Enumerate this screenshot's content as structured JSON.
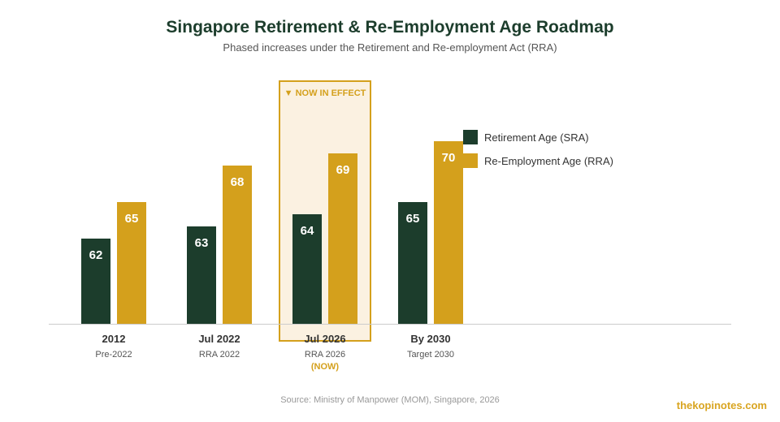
{
  "title": "Singapore Retirement & Re-Employment Age Roadmap",
  "subtitle": "Phased increases under the Retirement and Re-employment Act (RRA)",
  "chart_data": {
    "type": "bar",
    "categories": [
      "2012",
      "Jul 2022",
      "Jul 2026",
      "By 2030"
    ],
    "category_sublabels": [
      "Pre-2022",
      "RRA 2022",
      "RRA 2026",
      "Target 2030"
    ],
    "series": [
      {
        "name": "Retirement Age (SRA)",
        "values": [
          62,
          63,
          64,
          65
        ],
        "color": "#1c3d2c"
      },
      {
        "name": "Re-Employment Age (RRA)",
        "values": [
          65,
          68,
          69,
          70
        ],
        "color": "#d4a01c"
      }
    ],
    "data_labels": true,
    "ylim": [
      55,
      72
    ],
    "legend_position": "top-right",
    "highlight": {
      "category_index": 2,
      "label": "▼ NOW IN EFFECT",
      "note": "(NOW)",
      "border_color": "#d4a01c",
      "fill_color": "#fbf1e1"
    }
  },
  "source": "Source: Ministry of Manpower (MOM), Singapore, 2026",
  "brand": "thekopinotes.com",
  "colors": {
    "title": "#1c3d2c",
    "axis": "#cccccc",
    "label": "#333333",
    "sublabel": "#555555"
  }
}
